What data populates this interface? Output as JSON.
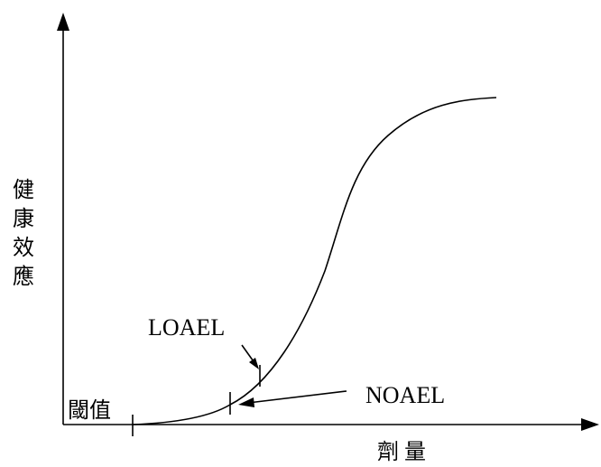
{
  "y_axis_label": "健康效應",
  "x_axis_label": "劑量",
  "threshold_label": "閾值",
  "loael_label": "LOAEL",
  "noael_label": "NOAEL",
  "colors": {
    "ink": "#000000",
    "background": "#ffffff"
  }
}
